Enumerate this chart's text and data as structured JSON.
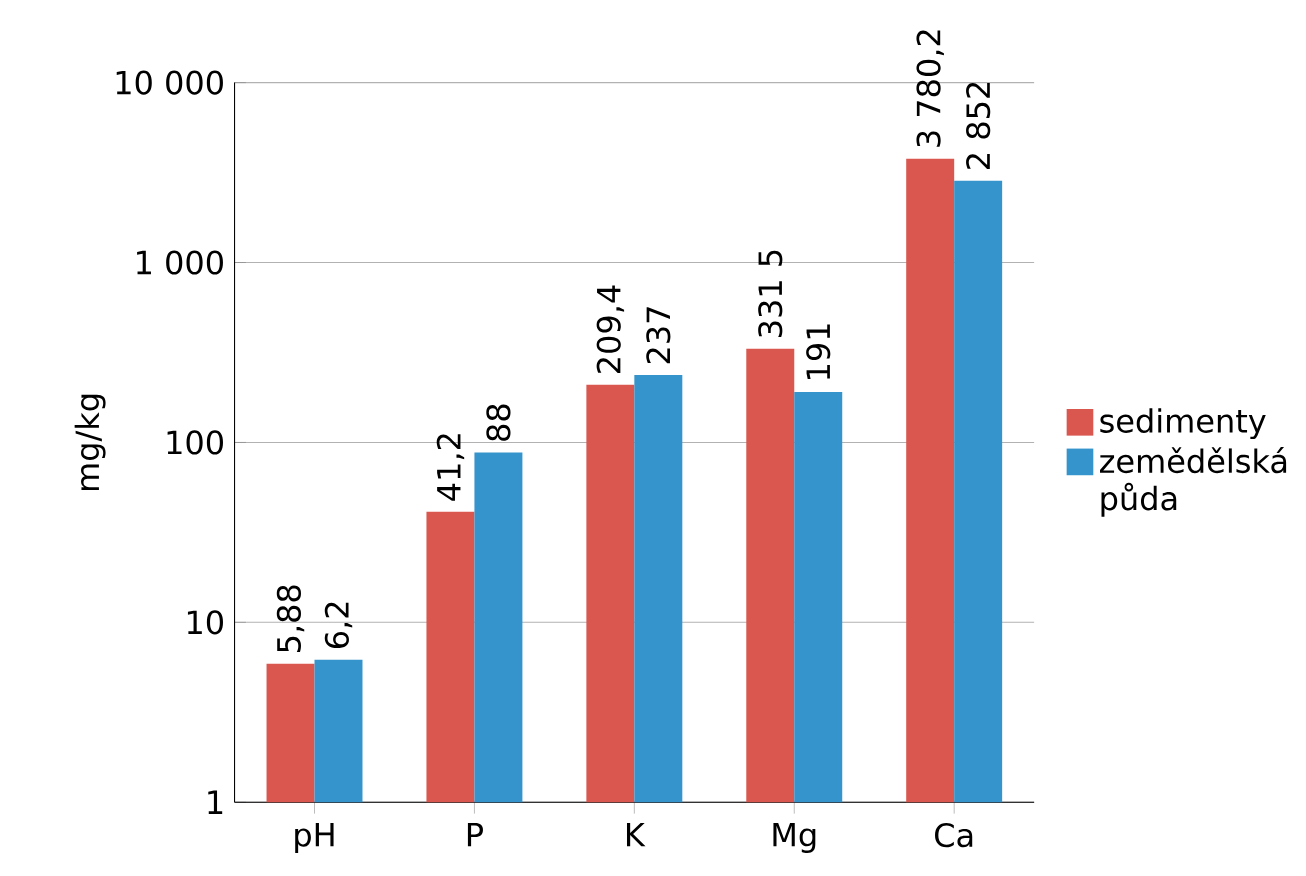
{
  "chart_data": {
    "type": "bar",
    "ylabel": "mg/kg",
    "categories": [
      "pH",
      "P",
      "K",
      "Mg",
      "Ca"
    ],
    "series": [
      {
        "name": "sedimenty",
        "color": "#d9574f",
        "values": [
          5.88,
          41.2,
          209.4,
          331.5,
          3780.2
        ],
        "value_labels": [
          "5,88",
          "41,2",
          "209,4",
          "331 5",
          "3 780,2"
        ]
      },
      {
        "name": "zemědělská půda",
        "color": "#3594cc",
        "values": [
          6.2,
          88,
          237,
          191,
          2852
        ],
        "value_labels": [
          "6,2",
          "88",
          "237",
          "191",
          "2 852"
        ]
      }
    ],
    "log": "y",
    "ylim": [
      1,
      10000
    ],
    "yticks": [
      1,
      10,
      100,
      {
        "value": 1000,
        "label": "1 000"
      },
      {
        "value": 10000,
        "label": "10 000"
      }
    ],
    "grid": "y",
    "legend": "right"
  }
}
